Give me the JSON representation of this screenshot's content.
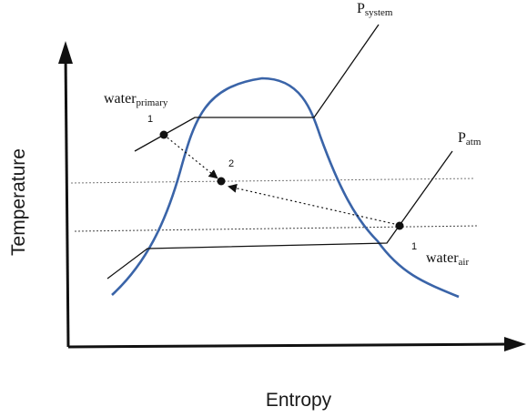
{
  "axes": {
    "x_label": "Entropy",
    "y_label": "Temperature"
  },
  "labels": {
    "p_system": {
      "main": "P",
      "sub": "system"
    },
    "p_atm": {
      "main": "P",
      "sub": "atm"
    },
    "water_primary": {
      "main": "water",
      "sub": "primary"
    },
    "water_air": {
      "main": "water",
      "sub": "air"
    }
  },
  "points": {
    "primary_state": "1",
    "mixed_state": "2",
    "air_state": "1"
  },
  "colors": {
    "dome": "#3a64a8",
    "lines": "#111111",
    "isotherms": "#777777"
  }
}
